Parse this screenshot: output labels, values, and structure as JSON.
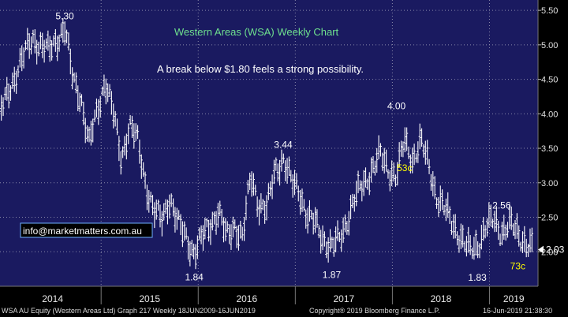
{
  "chart_data": {
    "type": "ohlc",
    "title": "Western Areas (WSA) Weekly Chart",
    "subtitle": "A break below $1.80 feels a strong possibility.",
    "x_labels": [
      "2014",
      "2015",
      "2016",
      "2017",
      "2018",
      "2019"
    ],
    "y_ticks": [
      "5.50",
      "5.00",
      "4.50",
      "4.00",
      "3.50",
      "3.00",
      "2.50",
      "2.00"
    ],
    "ylim": [
      1.5,
      5.65
    ],
    "last_price": "2.03",
    "watermark": "info@marketmatters.com.au",
    "colors": {
      "background": "#1a1a60",
      "bars": "#ffffff",
      "grid": "#8888a8",
      "title": "#6ee08e",
      "highlight": "#ffff00"
    },
    "annotations": [
      {
        "text": "5.30",
        "x": "2014-08",
        "y": 5.3,
        "color": "#ffffff"
      },
      {
        "text": "1.84",
        "x": "2015-12",
        "y": 1.84,
        "color": "#ffffff"
      },
      {
        "text": "3.44",
        "x": "2016-11",
        "y": 3.44,
        "color": "#ffffff"
      },
      {
        "text": "1.87",
        "x": "2017-05",
        "y": 1.87,
        "color": "#ffffff"
      },
      {
        "text": "4.00",
        "x": "2018-01",
        "y": 4.0,
        "color": "#ffffff"
      },
      {
        "text": "53c",
        "x": "2018-02",
        "y": 3.1,
        "color": "#ffff00"
      },
      {
        "text": "1.83",
        "x": "2018-11",
        "y": 1.83,
        "color": "#ffffff"
      },
      {
        "text": "2.56",
        "x": "2019-02",
        "y": 2.56,
        "color": "#ffffff"
      },
      {
        "text": "73c",
        "x": "2019-04",
        "y": 2.0,
        "color": "#ffff00"
      }
    ],
    "series": [
      {
        "x": "2013-12",
        "y": 4.0
      },
      {
        "x": "2014-02",
        "y": 4.6
      },
      {
        "x": "2014-04",
        "y": 5.1
      },
      {
        "x": "2014-06",
        "y": 4.9
      },
      {
        "x": "2014-08",
        "y": 5.25
      },
      {
        "x": "2014-09",
        "y": 4.5
      },
      {
        "x": "2014-10",
        "y": 4.25
      },
      {
        "x": "2014-11",
        "y": 3.55
      },
      {
        "x": "2015-01",
        "y": 4.5
      },
      {
        "x": "2015-02",
        "y": 4.0
      },
      {
        "x": "2015-03",
        "y": 3.35
      },
      {
        "x": "2015-04",
        "y": 3.85
      },
      {
        "x": "2015-05",
        "y": 3.6
      },
      {
        "x": "2015-06",
        "y": 3.0
      },
      {
        "x": "2015-07",
        "y": 2.6
      },
      {
        "x": "2015-08",
        "y": 2.45
      },
      {
        "x": "2015-09",
        "y": 2.8
      },
      {
        "x": "2015-10",
        "y": 2.4
      },
      {
        "x": "2015-11",
        "y": 2.2
      },
      {
        "x": "2015-12",
        "y": 2.0
      },
      {
        "x": "2016-01",
        "y": 2.2
      },
      {
        "x": "2016-02",
        "y": 2.4
      },
      {
        "x": "2016-03",
        "y": 2.6
      },
      {
        "x": "2016-04",
        "y": 2.2
      },
      {
        "x": "2016-05",
        "y": 2.4
      },
      {
        "x": "2016-06",
        "y": 2.2
      },
      {
        "x": "2016-07",
        "y": 3.1
      },
      {
        "x": "2016-08",
        "y": 2.7
      },
      {
        "x": "2016-09",
        "y": 2.6
      },
      {
        "x": "2016-10",
        "y": 3.2
      },
      {
        "x": "2016-11",
        "y": 3.35
      },
      {
        "x": "2016-12",
        "y": 3.0
      },
      {
        "x": "2017-01",
        "y": 2.9
      },
      {
        "x": "2017-02",
        "y": 2.5
      },
      {
        "x": "2017-03",
        "y": 2.4
      },
      {
        "x": "2017-04",
        "y": 2.2
      },
      {
        "x": "2017-05",
        "y": 2.05
      },
      {
        "x": "2017-06",
        "y": 2.2
      },
      {
        "x": "2017-07",
        "y": 2.5
      },
      {
        "x": "2017-08",
        "y": 2.8
      },
      {
        "x": "2017-09",
        "y": 3.0
      },
      {
        "x": "2017-10",
        "y": 3.2
      },
      {
        "x": "2017-11",
        "y": 3.4
      },
      {
        "x": "2017-12",
        "y": 3.2
      },
      {
        "x": "2018-01",
        "y": 3.1
      },
      {
        "x": "2018-02",
        "y": 3.6
      },
      {
        "x": "2018-03",
        "y": 3.35
      },
      {
        "x": "2018-04",
        "y": 3.6
      },
      {
        "x": "2018-05",
        "y": 3.25
      },
      {
        "x": "2018-06",
        "y": 2.8
      },
      {
        "x": "2018-07",
        "y": 2.6
      },
      {
        "x": "2018-08",
        "y": 2.4
      },
      {
        "x": "2018-09",
        "y": 2.2
      },
      {
        "x": "2018-10",
        "y": 2.0
      },
      {
        "x": "2018-11",
        "y": 2.1
      },
      {
        "x": "2018-12",
        "y": 2.35
      },
      {
        "x": "2019-01",
        "y": 2.45
      },
      {
        "x": "2019-02",
        "y": 2.3
      },
      {
        "x": "2019-03",
        "y": 2.4
      },
      {
        "x": "2019-04",
        "y": 2.25
      },
      {
        "x": "2019-05",
        "y": 2.15
      },
      {
        "x": "2019-06",
        "y": 2.03
      }
    ]
  },
  "footer": {
    "left": "WSA AU Equity (Western Areas Ltd) Graph 217  Weekly 18JUN2009-16JUN2019",
    "center": "Copyright® 2019 Bloomberg Finance L.P.",
    "right": "16-Jun-2019 21:38:30"
  }
}
